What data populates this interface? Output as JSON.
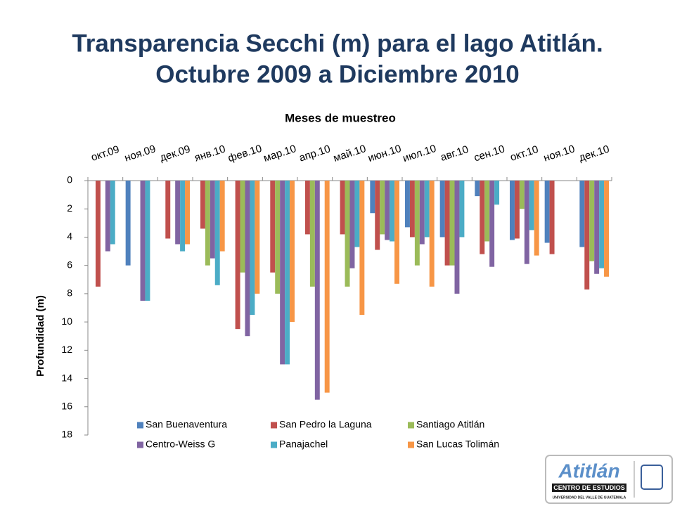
{
  "header": {
    "title_lines": [
      "Transparencia Secchi (m) para el lago Atitlán.",
      "Octubre 2009 a Diciembre 2010"
    ]
  },
  "chart_data": {
    "type": "bar",
    "x_label": "Meses de muestreo",
    "y_label": "Profundidad (m)",
    "categories": [
      "окт.09",
      "ноя.09",
      "дек.09",
      "янв.10",
      "фев.10",
      "мар.10",
      "апр.10",
      "май.10",
      "июн.10",
      "июл.10",
      "авг.10",
      "сен.10",
      "окт.10",
      "ноя.10",
      "дек.10"
    ],
    "series": [
      {
        "name": "San Buenaventura",
        "color": "#4f81bd",
        "values": [
          null,
          6.0,
          null,
          null,
          null,
          null,
          null,
          null,
          2.3,
          3.3,
          4.0,
          1.1,
          4.2,
          4.4,
          4.7
        ]
      },
      {
        "name": "San Pedro la Laguna",
        "color": "#c0504d",
        "values": [
          7.5,
          null,
          4.1,
          3.4,
          10.5,
          6.5,
          3.8,
          3.8,
          4.9,
          4.0,
          6.0,
          5.2,
          4.1,
          5.2,
          7.7
        ]
      },
      {
        "name": "Santiago Atitlán",
        "color": "#9bbb59",
        "values": [
          null,
          null,
          null,
          6.0,
          6.5,
          8.0,
          7.5,
          7.5,
          3.8,
          6.0,
          6.0,
          4.3,
          2.0,
          null,
          5.7
        ]
      },
      {
        "name": "Centro-Weiss G",
        "color": "#8064a2",
        "values": [
          5.0,
          8.5,
          4.5,
          5.5,
          11.0,
          13.0,
          15.5,
          6.2,
          4.2,
          4.5,
          8.0,
          6.1,
          5.9,
          null,
          6.6
        ]
      },
      {
        "name": "Panajachel",
        "color": "#4bacc6",
        "values": [
          4.5,
          8.5,
          5.0,
          7.4,
          9.5,
          13.0,
          null,
          4.7,
          4.3,
          4.0,
          4.0,
          1.7,
          3.5,
          null,
          6.2
        ]
      },
      {
        "name": "San Lucas Tolimán",
        "color": "#f79646",
        "values": [
          null,
          null,
          4.5,
          5.0,
          8.0,
          10.0,
          15.0,
          9.5,
          7.3,
          7.5,
          null,
          null,
          5.3,
          null,
          6.8
        ]
      }
    ],
    "ylim": [
      0,
      18
    ],
    "yticks": [
      0,
      2,
      4,
      6,
      8,
      10,
      12,
      14,
      16,
      18
    ],
    "y_inverted": true,
    "grid": false,
    "legend": "bottom"
  },
  "logo": {
    "name": "Atitlán",
    "subtitle": "CENTRO DE ESTUDIOS",
    "university": "UNIVERSIDAD DEL VALLE DE GUATEMALA"
  }
}
